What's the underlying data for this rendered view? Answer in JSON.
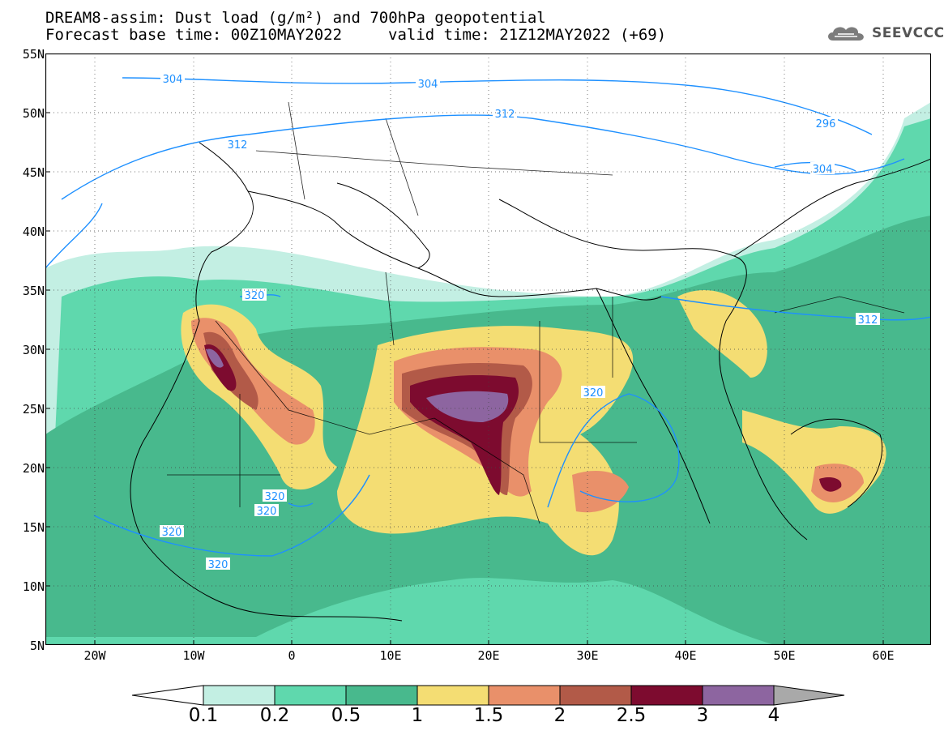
{
  "title": {
    "line1": "DREAM8-assim: Dust load (g/m²) and 700hPa geopotential",
    "line2_base": "Forecast base time: 00Z10MAY2022",
    "line2_valid": "valid time: 21Z12MAY2022 (+69)"
  },
  "logo": {
    "text": "SEEVCCC",
    "icon": "cloud-icon"
  },
  "axes": {
    "lat_labels": [
      "55N",
      "50N",
      "45N",
      "40N",
      "35N",
      "30N",
      "25N",
      "20N",
      "15N",
      "10N",
      "5N"
    ],
    "lon_labels": [
      "20W",
      "10W",
      "0",
      "10E",
      "20E",
      "30E",
      "40E",
      "50E",
      "60E"
    ]
  },
  "contours": {
    "labels": [
      "304",
      "304",
      "312",
      "312",
      "296",
      "304",
      "320",
      "320",
      "320",
      "320",
      "320",
      "320",
      "312"
    ]
  },
  "colorbar": {
    "levels": [
      "0.1",
      "0.2",
      "0.5",
      "1",
      "1.5",
      "2",
      "2.5",
      "3",
      "4"
    ],
    "colors": [
      "#c3efe3",
      "#5fd8ad",
      "#48b98d",
      "#f4dd73",
      "#e9906a",
      "#b25a48",
      "#7d0b2f",
      "#8d65a0",
      "#a9a9a9"
    ]
  },
  "map": {
    "frame_color": "#000000",
    "contour_color": "#1e90ff",
    "border_color": "#000000"
  }
}
